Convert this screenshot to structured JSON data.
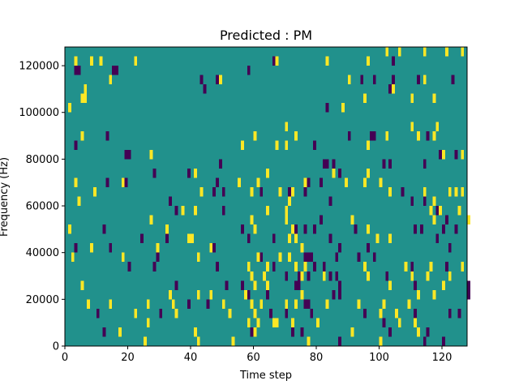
{
  "chart_data": {
    "type": "heatmap",
    "title": "Predicted : PM",
    "xlabel": "Time step",
    "ylabel": "Frequency (Hz)",
    "xlim": [
      0,
      128
    ],
    "ylim": [
      0,
      128000
    ],
    "xticks": [
      0,
      20,
      40,
      60,
      80,
      100,
      120
    ],
    "yticks": [
      0,
      20000,
      40000,
      60000,
      80000,
      100000,
      120000
    ],
    "xtick_labels": [
      "0",
      "20",
      "40",
      "60",
      "80",
      "100",
      "120"
    ],
    "ytick_labels": [
      "0",
      "20000",
      "40000",
      "60000",
      "80000",
      "100000",
      "120000"
    ],
    "colormap": "viridis",
    "grid": false,
    "cell_width": 1,
    "cell_height": 4000,
    "colors": {
      "background": "#21918c",
      "low": "#440154",
      "high": "#fde725"
    },
    "background_value": 0,
    "low_cells": [
      [
        3,
        116000
      ],
      [
        4,
        116000
      ],
      [
        15,
        116000
      ],
      [
        16,
        116000
      ],
      [
        44,
        108000
      ],
      [
        43,
        112000
      ],
      [
        48,
        112000
      ],
      [
        58,
        116000
      ],
      [
        66,
        120000
      ],
      [
        94,
        112000
      ],
      [
        98,
        112000
      ],
      [
        104,
        120000
      ],
      [
        103,
        108000
      ],
      [
        112,
        112000
      ],
      [
        123,
        112000
      ],
      [
        83,
        100000
      ],
      [
        104,
        112000
      ],
      [
        13,
        88000
      ],
      [
        19,
        80000
      ],
      [
        20,
        80000
      ],
      [
        28,
        72000
      ],
      [
        3,
        84000
      ],
      [
        90,
        88000
      ],
      [
        97,
        88000
      ],
      [
        98,
        88000
      ],
      [
        115,
        88000
      ],
      [
        79,
        84000
      ],
      [
        39,
        72000
      ],
      [
        49,
        76000
      ],
      [
        48,
        68000
      ],
      [
        82,
        76000
      ],
      [
        83,
        76000
      ],
      [
        85,
        76000
      ],
      [
        87,
        72000
      ],
      [
        101,
        76000
      ],
      [
        103,
        76000
      ],
      [
        114,
        76000
      ],
      [
        119,
        80000
      ],
      [
        124,
        80000
      ],
      [
        47,
        64000
      ],
      [
        62,
        64000
      ],
      [
        13,
        68000
      ],
      [
        19,
        68000
      ],
      [
        33,
        60000
      ],
      [
        35,
        56000
      ],
      [
        50,
        64000
      ],
      [
        50,
        56000
      ],
      [
        71,
        64000
      ],
      [
        76,
        64000
      ],
      [
        77,
        68000
      ],
      [
        81,
        68000
      ],
      [
        84,
        60000
      ],
      [
        107,
        64000
      ],
      [
        110,
        60000
      ],
      [
        12,
        48000
      ],
      [
        24,
        44000
      ],
      [
        3,
        40000
      ],
      [
        14,
        40000
      ],
      [
        29,
        36000
      ],
      [
        32,
        44000
      ],
      [
        47,
        40000
      ],
      [
        56,
        48000
      ],
      [
        58,
        44000
      ],
      [
        66,
        44000
      ],
      [
        73,
        48000
      ],
      [
        76,
        48000
      ],
      [
        79,
        48000
      ],
      [
        81,
        52000
      ],
      [
        84,
        44000
      ],
      [
        87,
        40000
      ],
      [
        98,
        36000
      ],
      [
        92,
        48000
      ],
      [
        96,
        40000
      ],
      [
        111,
        48000
      ],
      [
        113,
        48000
      ],
      [
        118,
        44000
      ],
      [
        120,
        48000
      ],
      [
        121,
        52000
      ],
      [
        122,
        40000
      ],
      [
        124,
        48000
      ],
      [
        118,
        56000
      ],
      [
        114,
        60000
      ],
      [
        20,
        32000
      ],
      [
        28,
        32000
      ],
      [
        48,
        32000
      ],
      [
        62,
        36000
      ],
      [
        66,
        32000
      ],
      [
        76,
        36000
      ],
      [
        77,
        36000
      ],
      [
        78,
        36000
      ],
      [
        82,
        32000
      ],
      [
        84,
        28000
      ],
      [
        87,
        24000
      ],
      [
        93,
        36000
      ],
      [
        110,
        32000
      ],
      [
        121,
        32000
      ],
      [
        35,
        24000
      ],
      [
        51,
        24000
      ],
      [
        56,
        24000
      ],
      [
        64,
        20000
      ],
      [
        70,
        28000
      ],
      [
        73,
        24000
      ],
      [
        74,
        24000
      ],
      [
        74,
        28000
      ],
      [
        77,
        28000
      ],
      [
        85,
        20000
      ],
      [
        87,
        20000
      ],
      [
        102,
        28000
      ],
      [
        111,
        24000
      ],
      [
        128,
        24000
      ],
      [
        128,
        20000
      ],
      [
        10,
        12000
      ],
      [
        12,
        4000
      ],
      [
        22,
        12000
      ],
      [
        30,
        12000
      ],
      [
        39,
        16000
      ],
      [
        45,
        16000
      ],
      [
        59,
        4000
      ],
      [
        65,
        12000
      ],
      [
        70,
        12000
      ],
      [
        72,
        4000
      ],
      [
        75,
        4000
      ],
      [
        76,
        16000
      ],
      [
        78,
        12000
      ],
      [
        95,
        12000
      ],
      [
        101,
        8000
      ],
      [
        103,
        4000
      ],
      [
        114,
        0
      ],
      [
        115,
        4000
      ],
      [
        120,
        0
      ],
      [
        122,
        12000
      ],
      [
        125,
        12000
      ],
      [
        58,
        20000
      ],
      [
        86,
        28000
      ],
      [
        86,
        36000
      ],
      [
        79,
        32000
      ],
      [
        77,
        16000
      ],
      [
        101,
        8000
      ],
      [
        87,
        0
      ],
      [
        111,
        12000
      ]
    ],
    "high_cells": [
      [
        3,
        120000
      ],
      [
        6,
        108000
      ],
      [
        8,
        120000
      ],
      [
        11,
        120000
      ],
      [
        14,
        112000
      ],
      [
        22,
        120000
      ],
      [
        49,
        112000
      ],
      [
        67,
        120000
      ],
      [
        83,
        120000
      ],
      [
        96,
        120000
      ],
      [
        102,
        124000
      ],
      [
        106,
        124000
      ],
      [
        114,
        124000
      ],
      [
        121,
        124000
      ],
      [
        126,
        124000
      ],
      [
        90,
        112000
      ],
      [
        95,
        104000
      ],
      [
        104,
        108000
      ],
      [
        110,
        104000
      ],
      [
        114,
        112000
      ],
      [
        117,
        104000
      ],
      [
        1,
        100000
      ],
      [
        5,
        104000
      ],
      [
        6,
        104000
      ],
      [
        88,
        100000
      ],
      [
        5,
        88000
      ],
      [
        27,
        80000
      ],
      [
        41,
        72000
      ],
      [
        56,
        84000
      ],
      [
        60,
        88000
      ],
      [
        67,
        84000
      ],
      [
        70,
        92000
      ],
      [
        70,
        84000
      ],
      [
        73,
        88000
      ],
      [
        96,
        84000
      ],
      [
        102,
        88000
      ],
      [
        110,
        92000
      ],
      [
        112,
        88000
      ],
      [
        117,
        88000
      ],
      [
        118,
        92000
      ],
      [
        120,
        80000
      ],
      [
        126,
        80000
      ],
      [
        3,
        68000
      ],
      [
        9,
        64000
      ],
      [
        18,
        68000
      ],
      [
        43,
        64000
      ],
      [
        55,
        68000
      ],
      [
        59,
        64000
      ],
      [
        61,
        68000
      ],
      [
        64,
        72000
      ],
      [
        68,
        64000
      ],
      [
        70,
        56000
      ],
      [
        71,
        60000
      ],
      [
        72,
        64000
      ],
      [
        76,
        68000
      ],
      [
        85,
        72000
      ],
      [
        89,
        68000
      ],
      [
        95,
        68000
      ],
      [
        96,
        72000
      ],
      [
        100,
        68000
      ],
      [
        103,
        64000
      ],
      [
        114,
        64000
      ],
      [
        117,
        60000
      ],
      [
        122,
        64000
      ],
      [
        124,
        64000
      ],
      [
        126,
        64000
      ],
      [
        4,
        60000
      ],
      [
        27,
        52000
      ],
      [
        32,
        48000
      ],
      [
        37,
        56000
      ],
      [
        41,
        56000
      ],
      [
        59,
        52000
      ],
      [
        60,
        48000
      ],
      [
        64,
        56000
      ],
      [
        70,
        52000
      ],
      [
        71,
        44000
      ],
      [
        72,
        48000
      ],
      [
        73,
        44000
      ],
      [
        75,
        40000
      ],
      [
        91,
        52000
      ],
      [
        96,
        48000
      ],
      [
        99,
        44000
      ],
      [
        103,
        44000
      ],
      [
        116,
        56000
      ],
      [
        117,
        52000
      ],
      [
        119,
        56000
      ],
      [
        125,
        56000
      ],
      [
        128,
        52000
      ],
      [
        1,
        48000
      ],
      [
        2,
        36000
      ],
      [
        8,
        40000
      ],
      [
        18,
        36000
      ],
      [
        29,
        40000
      ],
      [
        39,
        44000
      ],
      [
        40,
        44000
      ],
      [
        42,
        36000
      ],
      [
        46,
        40000
      ],
      [
        58,
        32000
      ],
      [
        59,
        28000
      ],
      [
        60,
        24000
      ],
      [
        61,
        36000
      ],
      [
        63,
        28000
      ],
      [
        64,
        32000
      ],
      [
        68,
        36000
      ],
      [
        71,
        36000
      ],
      [
        73,
        32000
      ],
      [
        75,
        28000
      ],
      [
        76,
        32000
      ],
      [
        82,
        28000
      ],
      [
        95,
        32000
      ],
      [
        96,
        28000
      ],
      [
        103,
        24000
      ],
      [
        108,
        32000
      ],
      [
        110,
        28000
      ],
      [
        112,
        20000
      ],
      [
        115,
        28000
      ],
      [
        116,
        32000
      ],
      [
        122,
        28000
      ],
      [
        126,
        32000
      ],
      [
        5,
        24000
      ],
      [
        7,
        16000
      ],
      [
        14,
        16000
      ],
      [
        22,
        12000
      ],
      [
        26,
        16000
      ],
      [
        33,
        20000
      ],
      [
        34,
        16000
      ],
      [
        35,
        12000
      ],
      [
        42,
        20000
      ],
      [
        46,
        20000
      ],
      [
        50,
        16000
      ],
      [
        57,
        20000
      ],
      [
        59,
        16000
      ],
      [
        60,
        12000
      ],
      [
        61,
        8000
      ],
      [
        62,
        16000
      ],
      [
        64,
        24000
      ],
      [
        67,
        8000
      ],
      [
        70,
        16000
      ],
      [
        72,
        8000
      ],
      [
        73,
        16000
      ],
      [
        75,
        20000
      ],
      [
        83,
        16000
      ],
      [
        93,
        16000
      ],
      [
        100,
        12000
      ],
      [
        101,
        16000
      ],
      [
        105,
        12000
      ],
      [
        109,
        16000
      ],
      [
        111,
        8000
      ],
      [
        117,
        20000
      ],
      [
        120,
        24000
      ],
      [
        17,
        4000
      ],
      [
        25,
        0
      ],
      [
        26,
        8000
      ],
      [
        41,
        4000
      ],
      [
        42,
        0
      ],
      [
        52,
        12000
      ],
      [
        53,
        0
      ],
      [
        58,
        8000
      ],
      [
        60,
        4000
      ],
      [
        66,
        8000
      ],
      [
        77,
        0
      ],
      [
        80,
        8000
      ],
      [
        91,
        4000
      ],
      [
        100,
        0
      ],
      [
        106,
        8000
      ],
      [
        112,
        4000
      ]
    ]
  }
}
